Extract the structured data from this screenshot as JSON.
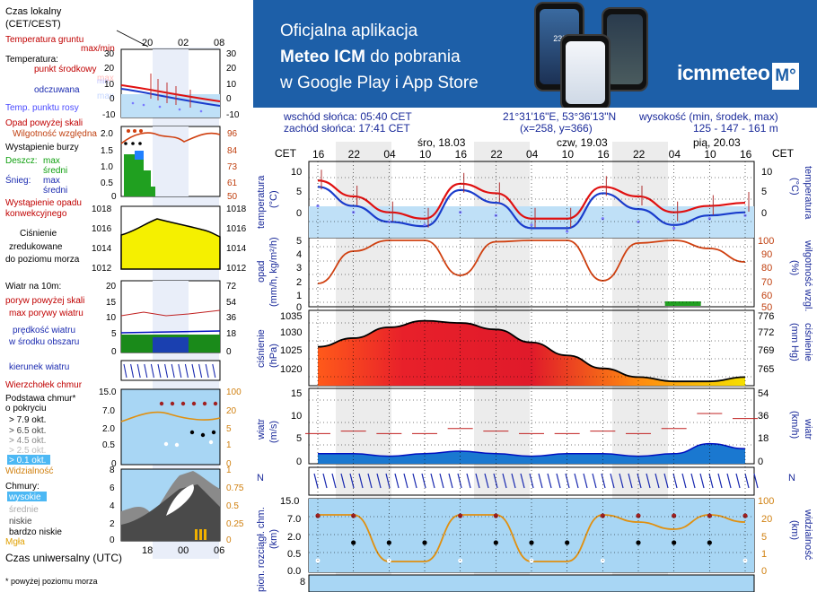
{
  "banner": {
    "line1": "Oficjalna aplikacja",
    "line2_strong": "Meteo ICM",
    "line2_rest": " do pobrania",
    "line3": "w Google Play i App Store",
    "brand": "icmmeteo",
    "brand_box": "M°",
    "phone_temp": "23°",
    "bg_color": "#1d5fa8"
  },
  "header": {
    "sunrise": "wschód słońca: 05:40 CET",
    "sunset": "zachód słońca: 17:41 CET",
    "coords": "21°31'16\"E, 53°36'13\"N",
    "grid": "(x=258,  y=366)",
    "elev_label": "wysokość (min, środek, max)",
    "elev_values": "125 - 147 - 161 m"
  },
  "legend_left": {
    "time_label": "Czas lokalny",
    "time_label2": "(CET/CEST)",
    "time_ticks": [
      "20",
      "02",
      "08"
    ],
    "ground_temp": "Temperatura gruntu",
    "ground_temp2": "max/min",
    "temp": "Temperatura:",
    "temp_mid": "punkt środkowy",
    "temp_max": "max",
    "temp_min": "min",
    "feels": "odczuwana",
    "feels_max": "max",
    "feels_min": "min",
    "dew": "Temp. punktu rosy",
    "precip_above": "Opad powyżej skali",
    "humidity": "Wilgotność względna",
    "storm": "Wystąpienie burzy",
    "rain": "Deszcz:",
    "rain_max": "max",
    "rain_avg": "średni",
    "snow": "Śnieg:",
    "snow_max": "max",
    "snow_avg": "średni",
    "precip_occ": "Wystąpienie opadu",
    "precip_occ2": "konwekcyjnego",
    "pressure": "Ciśnienie",
    "pressure2": "zredukowane",
    "pressure3": "do poziomu morza",
    "wind": "Wiatr na 10m:",
    "gust_above": "poryw powyżej skali",
    "gust_max": "max porywy wiatru",
    "wind_speed": "prędkość wiatru",
    "wind_speed2": "w środku obszaru",
    "wind_dir": "kierunek wiatru",
    "cloud_top": "Wierzchołek chmur",
    "cloud_base": "Podstawa chmur*",
    "cloud_base2": "o pokryciu",
    "okt": [
      "> 7.9 okt.",
      "> 6.5 okt.",
      "> 4.5 okt.",
      "> 2.5 okt.",
      "> 0.1 okt."
    ],
    "visibility": "Widzialność",
    "clouds": "Chmury:",
    "cl_high": "wysokie",
    "cl_mid": "średnie",
    "cl_low": "niskie",
    "cl_vlow": "bardzo niskie",
    "fog": "Mgła",
    "utc": "Czas uniwersalny (UTC)",
    "utc_ticks": [
      "18",
      "00",
      "06"
    ],
    "footnote": "* powyżej poziomu morza",
    "panel_temp_left": [
      "30",
      "20",
      "10",
      "0",
      "-10"
    ],
    "panel_temp_right": [
      "30",
      "20",
      "10",
      "0",
      "-10"
    ],
    "panel_prec_left": [
      "2.0",
      "1.5",
      "1.0",
      "0.5",
      "0"
    ],
    "panel_prec_right": [
      "96",
      "84",
      "73",
      "61",
      "50"
    ],
    "panel_pres_left": [
      "1018",
      "1016",
      "1014",
      "1012"
    ],
    "panel_pres_right": [
      "1018",
      "1016",
      "1014",
      "1012"
    ],
    "panel_wind_left": [
      "20",
      "15",
      "10",
      "5",
      "0"
    ],
    "panel_wind_right": [
      "72",
      "54",
      "36",
      "18",
      "0"
    ],
    "panel_cb_left": [
      "15.0",
      "7.0",
      "2.0",
      "0.5",
      "0"
    ],
    "panel_cb_right": [
      "100",
      "20",
      "5",
      "1",
      "0"
    ],
    "panel_cl_left": [
      "8",
      "6",
      "4",
      "2",
      "0"
    ],
    "panel_cl_right": [
      "1",
      "0.75",
      "0.5",
      "0.25",
      "0"
    ]
  },
  "main": {
    "cet": "CET",
    "hour_ticks": [
      "16",
      "22",
      "04",
      "10",
      "16",
      "22",
      "04",
      "10",
      "16",
      "22",
      "04",
      "10",
      "16"
    ],
    "days": [
      "śro, 18.03",
      "czw, 19.03",
      "pią, 20.03"
    ],
    "temp_label": "temperatura",
    "temp_unit": "(°C)",
    "temp_ticks": [
      "10",
      "5",
      "0"
    ],
    "prec_label": "opad",
    "prec_unit": "(mm/h, kg/m²/h)",
    "prec_ticks": [
      "5",
      "4",
      "3",
      "2",
      "1",
      "0"
    ],
    "hum_label": "wilgotność wzgl.",
    "hum_unit": "(%)",
    "hum_ticks": [
      "100",
      "90",
      "80",
      "70",
      "60",
      "50"
    ],
    "pres_label": "ciśnienie",
    "pres_unit": "(hPa)",
    "pres_ticks": [
      "1035",
      "1030",
      "1025",
      "1020"
    ],
    "pres_unit_r": "(mm Hg)",
    "pres_ticks_r": [
      "776",
      "772",
      "769",
      "765"
    ],
    "wind_label": "wiatr",
    "wind_unit": "(m/s)",
    "wind_ticks": [
      "15",
      "10",
      "5",
      "0"
    ],
    "wind_unit_r": "(km/h)",
    "wind_ticks_r": [
      "54",
      "36",
      "18",
      "0"
    ],
    "wdir_label": "N",
    "cb_label": "pion. rozciągł. chm.",
    "cb_unit": "(km)",
    "cb_ticks": [
      "15.0",
      "7.0",
      "2.0",
      "0.5",
      "0.0"
    ],
    "vis_label": "widzialność",
    "vis_unit": "(km)",
    "vis_ticks": [
      "100",
      "20",
      "5",
      "1",
      "0"
    ],
    "bottom_tick": "8"
  },
  "chart_data": [
    {
      "type": "line",
      "title": "temperatura",
      "ylabel": "(°C)",
      "x": [
        "16",
        "22",
        "04",
        "10",
        "16",
        "22",
        "04",
        "10",
        "16",
        "22",
        "04",
        "10",
        "16"
      ],
      "ylim": [
        -1,
        11
      ],
      "series": [
        {
          "values": [
            8,
            5.5,
            3,
            2,
            7.5,
            6,
            2,
            2,
            7,
            5.5,
            3,
            4,
            4.5
          ]
        },
        {
          "values": [
            7,
            4,
            1.5,
            0.8,
            6.5,
            4.5,
            0.5,
            0.5,
            6,
            3.5,
            1,
            2.5,
            3
          ]
        },
        {
          "values": [
            4,
            3,
            1.5,
            1,
            3,
            2.5,
            1,
            0,
            2,
            1.5,
            0.5,
            2,
            2.5
          ]
        }
      ]
    },
    {
      "type": "line",
      "title": "wilgotność wzgl.",
      "ylabel": "(%)",
      "x": [
        "16",
        "22",
        "04",
        "10",
        "16",
        "22",
        "04",
        "10",
        "16",
        "22",
        "04",
        "10",
        "16"
      ],
      "ylim": [
        50,
        100
      ],
      "series": [
        {
          "values": [
            66,
            90,
            98,
            98,
            72,
            97,
            98,
            98,
            68,
            96,
            98,
            92,
            82
          ]
        }
      ]
    },
    {
      "type": "area",
      "title": "ciśnienie",
      "ylabel": "(hPa)",
      "x": [
        "16",
        "22",
        "04",
        "10",
        "16",
        "22",
        "04",
        "10",
        "16",
        "22",
        "04",
        "10",
        "16"
      ],
      "ylim": [
        1018,
        1035
      ],
      "series": [
        {
          "values": [
            1027,
            1029,
            1031.5,
            1033,
            1032.5,
            1031,
            1028,
            1025,
            1022,
            1020,
            1019,
            1019,
            1020
          ]
        }
      ]
    },
    {
      "type": "area",
      "title": "wiatr",
      "ylabel": "(m/s)",
      "x": [
        "16",
        "22",
        "04",
        "10",
        "16",
        "22",
        "04",
        "10",
        "16",
        "22",
        "04",
        "10",
        "16"
      ],
      "ylim": [
        0,
        15
      ],
      "series": [
        {
          "values": [
            2,
            2,
            1.5,
            2,
            2.5,
            2,
            1.5,
            2,
            2,
            1.5,
            2,
            4,
            3
          ]
        },
        {
          "values": [
            6,
            6.5,
            6,
            6,
            7,
            6.5,
            6,
            6,
            6.5,
            6,
            7,
            10,
            9
          ]
        }
      ]
    }
  ]
}
